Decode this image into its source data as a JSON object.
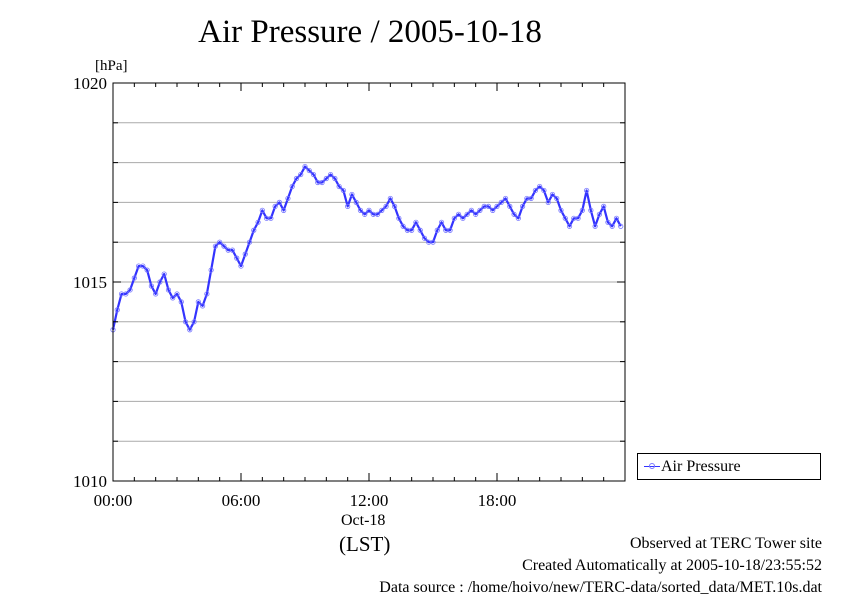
{
  "chart_data": {
    "type": "line",
    "title": "Air Pressure / 2005-10-18",
    "ylabel": "[hPa]",
    "ylim": [
      1010,
      1020
    ],
    "yticks": [
      "1010",
      "1015",
      "1020"
    ],
    "xlim_hours": [
      0,
      24
    ],
    "xticks": [
      {
        "hour": 0,
        "label": "00:00"
      },
      {
        "hour": 6,
        "label": "06:00"
      },
      {
        "hour": 12,
        "label": "12:00"
      },
      {
        "hour": 18,
        "label": "18:00"
      }
    ],
    "xdate_label": "Oct-18",
    "xunit_label": "(LST)",
    "grid": true,
    "legend_position": "right",
    "series": [
      {
        "name": "Air Pressure",
        "color": "#3333ff",
        "marker_color": "#7777ff",
        "x": [
          0.0,
          0.2,
          0.4,
          0.6,
          0.8,
          1.0,
          1.2,
          1.4,
          1.6,
          1.8,
          2.0,
          2.2,
          2.4,
          2.6,
          2.8,
          3.0,
          3.2,
          3.4,
          3.6,
          3.8,
          4.0,
          4.2,
          4.4,
          4.6,
          4.8,
          5.0,
          5.2,
          5.4,
          5.6,
          5.8,
          6.0,
          6.2,
          6.4,
          6.6,
          6.8,
          7.0,
          7.2,
          7.4,
          7.6,
          7.8,
          8.0,
          8.2,
          8.4,
          8.6,
          8.8,
          9.0,
          9.2,
          9.4,
          9.6,
          9.8,
          10.0,
          10.2,
          10.4,
          10.6,
          10.8,
          11.0,
          11.2,
          11.4,
          11.6,
          11.8,
          12.0,
          12.2,
          12.4,
          12.6,
          12.8,
          13.0,
          13.2,
          13.4,
          13.6,
          13.8,
          14.0,
          14.2,
          14.4,
          14.6,
          14.8,
          15.0,
          15.2,
          15.4,
          15.6,
          15.8,
          16.0,
          16.2,
          16.4,
          16.6,
          16.8,
          17.0,
          17.2,
          17.4,
          17.6,
          17.8,
          18.0,
          18.2,
          18.4,
          18.6,
          18.8,
          19.0,
          19.2,
          19.4,
          19.6,
          19.8,
          20.0,
          20.2,
          20.4,
          20.6,
          20.8,
          21.0,
          21.2,
          21.4,
          21.6,
          21.8,
          22.0,
          22.2,
          22.4,
          22.6,
          22.8,
          23.0,
          23.2,
          23.4,
          23.6,
          23.8
        ],
        "values": [
          1013.8,
          1014.3,
          1014.7,
          1014.7,
          1014.8,
          1015.1,
          1015.4,
          1015.4,
          1015.3,
          1014.9,
          1014.7,
          1015.0,
          1015.2,
          1014.8,
          1014.6,
          1014.7,
          1014.5,
          1014.0,
          1013.8,
          1014.0,
          1014.5,
          1014.4,
          1014.7,
          1015.3,
          1015.9,
          1016.0,
          1015.9,
          1015.8,
          1015.8,
          1015.6,
          1015.4,
          1015.7,
          1016.0,
          1016.3,
          1016.5,
          1016.8,
          1016.6,
          1016.6,
          1016.9,
          1017.0,
          1016.8,
          1017.1,
          1017.4,
          1017.6,
          1017.7,
          1017.9,
          1017.8,
          1017.7,
          1017.5,
          1017.5,
          1017.6,
          1017.7,
          1017.6,
          1017.4,
          1017.3,
          1016.9,
          1017.2,
          1017.0,
          1016.8,
          1016.7,
          1016.8,
          1016.7,
          1016.7,
          1016.8,
          1016.9,
          1017.1,
          1016.9,
          1016.6,
          1016.4,
          1016.3,
          1016.3,
          1016.5,
          1016.3,
          1016.1,
          1016.0,
          1016.0,
          1016.3,
          1016.5,
          1016.3,
          1016.3,
          1016.6,
          1016.7,
          1016.6,
          1016.7,
          1016.8,
          1016.7,
          1016.8,
          1016.9,
          1016.9,
          1016.8,
          1016.9,
          1017.0,
          1017.1,
          1016.9,
          1016.7,
          1016.6,
          1016.9,
          1017.1,
          1017.1,
          1017.3,
          1017.4,
          1017.3,
          1017.0,
          1017.2,
          1017.1,
          1016.8,
          1016.6,
          1016.4,
          1016.6,
          1016.6,
          1016.8,
          1017.3,
          1016.8,
          1016.4,
          1016.7,
          1016.9,
          1016.5,
          1016.4,
          1016.6,
          1016.4
        ]
      }
    ]
  },
  "footer": {
    "line1": "Observed at TERC Tower site",
    "line2": "Created Automatically at 2005-10-18/23:55:52",
    "line3": "Data source : /home/hoivo/new/TERC-data/sorted_data/MET.10s.dat"
  }
}
